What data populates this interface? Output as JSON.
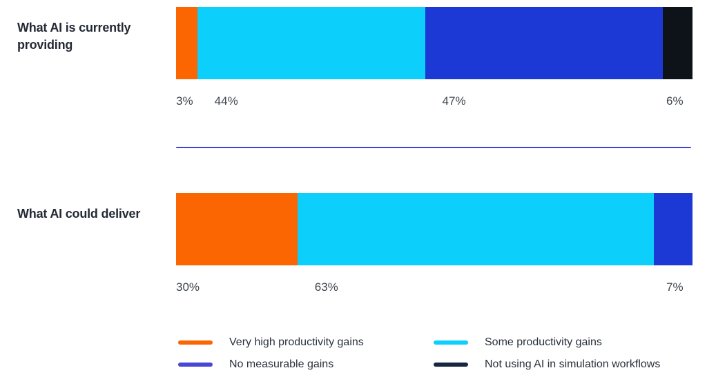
{
  "colors": {
    "orange": "#FB6502",
    "cyan": "#0CD0FB",
    "blue": "#1C39D5",
    "dark_navy": "#0D1318",
    "legend_blue": "#4948D6",
    "legend_dark": "#182741",
    "divider": "#3848D2",
    "title_text": "#232935",
    "value_text": "#3F464E"
  },
  "chart_data": {
    "type": "bar",
    "orientation": "horizontal_stacked",
    "unit": "%",
    "legend_position": "bottom",
    "grid": false,
    "series": [
      {
        "name": "Very high productivity gains",
        "color": "#FB6502",
        "values": [
          3,
          30
        ]
      },
      {
        "name": "Some productivity gains",
        "color": "#0CD0FB",
        "values": [
          44,
          63
        ]
      },
      {
        "name": "No measurable gains",
        "color": "#1C39D5",
        "values": [
          47,
          7
        ]
      },
      {
        "name": "Not using AI in simulation workflows",
        "color": "#0D1318",
        "values": [
          6,
          0
        ]
      }
    ],
    "categories": [
      "What AI is currently providing",
      "What AI could deliver"
    ],
    "rows": [
      {
        "category": "What AI is currently providing",
        "segments": [
          {
            "series": "Very high productivity gains",
            "value": 3,
            "label": "3%",
            "display_weight": 4.1
          },
          {
            "series": "Some productivity gains",
            "value": 44,
            "label": "44%",
            "display_weight": 44.1
          },
          {
            "series": "No measurable gains",
            "value": 47,
            "label": "47%",
            "display_weight": 46.0
          },
          {
            "series": "Not using AI in simulation workflows",
            "value": 6,
            "label": "6%",
            "display_weight": 5.8
          }
        ]
      },
      {
        "category": "What AI could deliver",
        "segments": [
          {
            "series": "Very high productivity gains",
            "value": 30,
            "label": "30%",
            "display_weight": 23.5
          },
          {
            "series": "Some productivity gains",
            "value": 63,
            "label": "63%",
            "display_weight": 69.0
          },
          {
            "series": "No measurable gains",
            "value": 7,
            "label": "7%",
            "display_weight": 7.5
          }
        ]
      }
    ]
  },
  "legend": {
    "items": [
      {
        "label": "Very high productivity gains",
        "swatch_color": "#FB6502"
      },
      {
        "label": "Some productivity gains",
        "swatch_color": "#0CD0FB"
      },
      {
        "label": "No measurable gains",
        "swatch_color": "#4948D6"
      },
      {
        "label": "Not using AI in simulation workflows",
        "swatch_color": "#182741"
      }
    ]
  }
}
